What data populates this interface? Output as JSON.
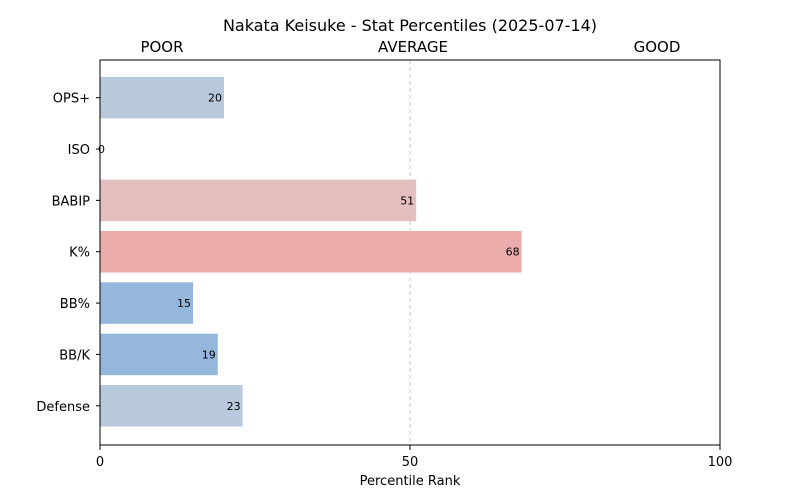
{
  "chart_data": {
    "type": "bar",
    "orientation": "horizontal",
    "title": "Nakata Keisuke - Stat Percentiles (2025-07-14)",
    "zone_labels": [
      "POOR",
      "AVERAGE",
      "GOOD"
    ],
    "xlabel": "Percentile Rank",
    "ylabel": "",
    "xlim": [
      0,
      100
    ],
    "xticks": [
      0,
      50,
      100
    ],
    "reference_line": 50,
    "grid": false,
    "categories": [
      "OPS+",
      "ISO",
      "BABIP",
      "K%",
      "BB%",
      "BB/K",
      "Defense"
    ],
    "values": [
      20,
      0,
      51,
      68,
      15,
      19,
      23
    ],
    "colors": [
      "#b8c9dc",
      "#b8c9dc",
      "#e3c0bf",
      "#ecacac",
      "#94b7db",
      "#94b7db",
      "#b8c9dc"
    ]
  }
}
